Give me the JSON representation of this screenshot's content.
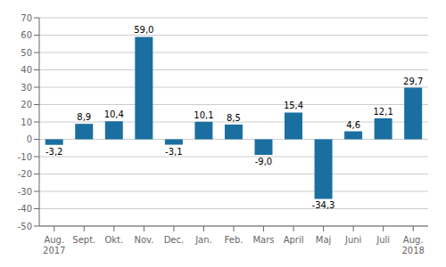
{
  "chart_data": {
    "type": "bar",
    "categories": [
      "Aug.\n2017",
      "Sept.",
      "Okt.",
      "Nov.",
      "Dec.",
      "Jan.",
      "Feb.",
      "Mars",
      "April",
      "Maj",
      "Juni",
      "Juli",
      "Aug.\n2018"
    ],
    "values": [
      -3.2,
      8.9,
      10.4,
      59.0,
      -3.1,
      10.1,
      8.5,
      -9.0,
      15.4,
      -34.3,
      4.6,
      12.1,
      29.7
    ],
    "value_labels": [
      "-3,2",
      "8,9",
      "10,4",
      "59,0",
      "-3,1",
      "10,1",
      "8,5",
      "-9,0",
      "15,4",
      "-34,3",
      "4,6",
      "12,1",
      "29,7"
    ],
    "data_labels": true,
    "color": "#1a6fa0",
    "ylim": [
      -50,
      70
    ],
    "yticks": [
      -50,
      -40,
      -30,
      -20,
      -10,
      0,
      10,
      20,
      30,
      40,
      50,
      60,
      70
    ],
    "grid": true
  }
}
